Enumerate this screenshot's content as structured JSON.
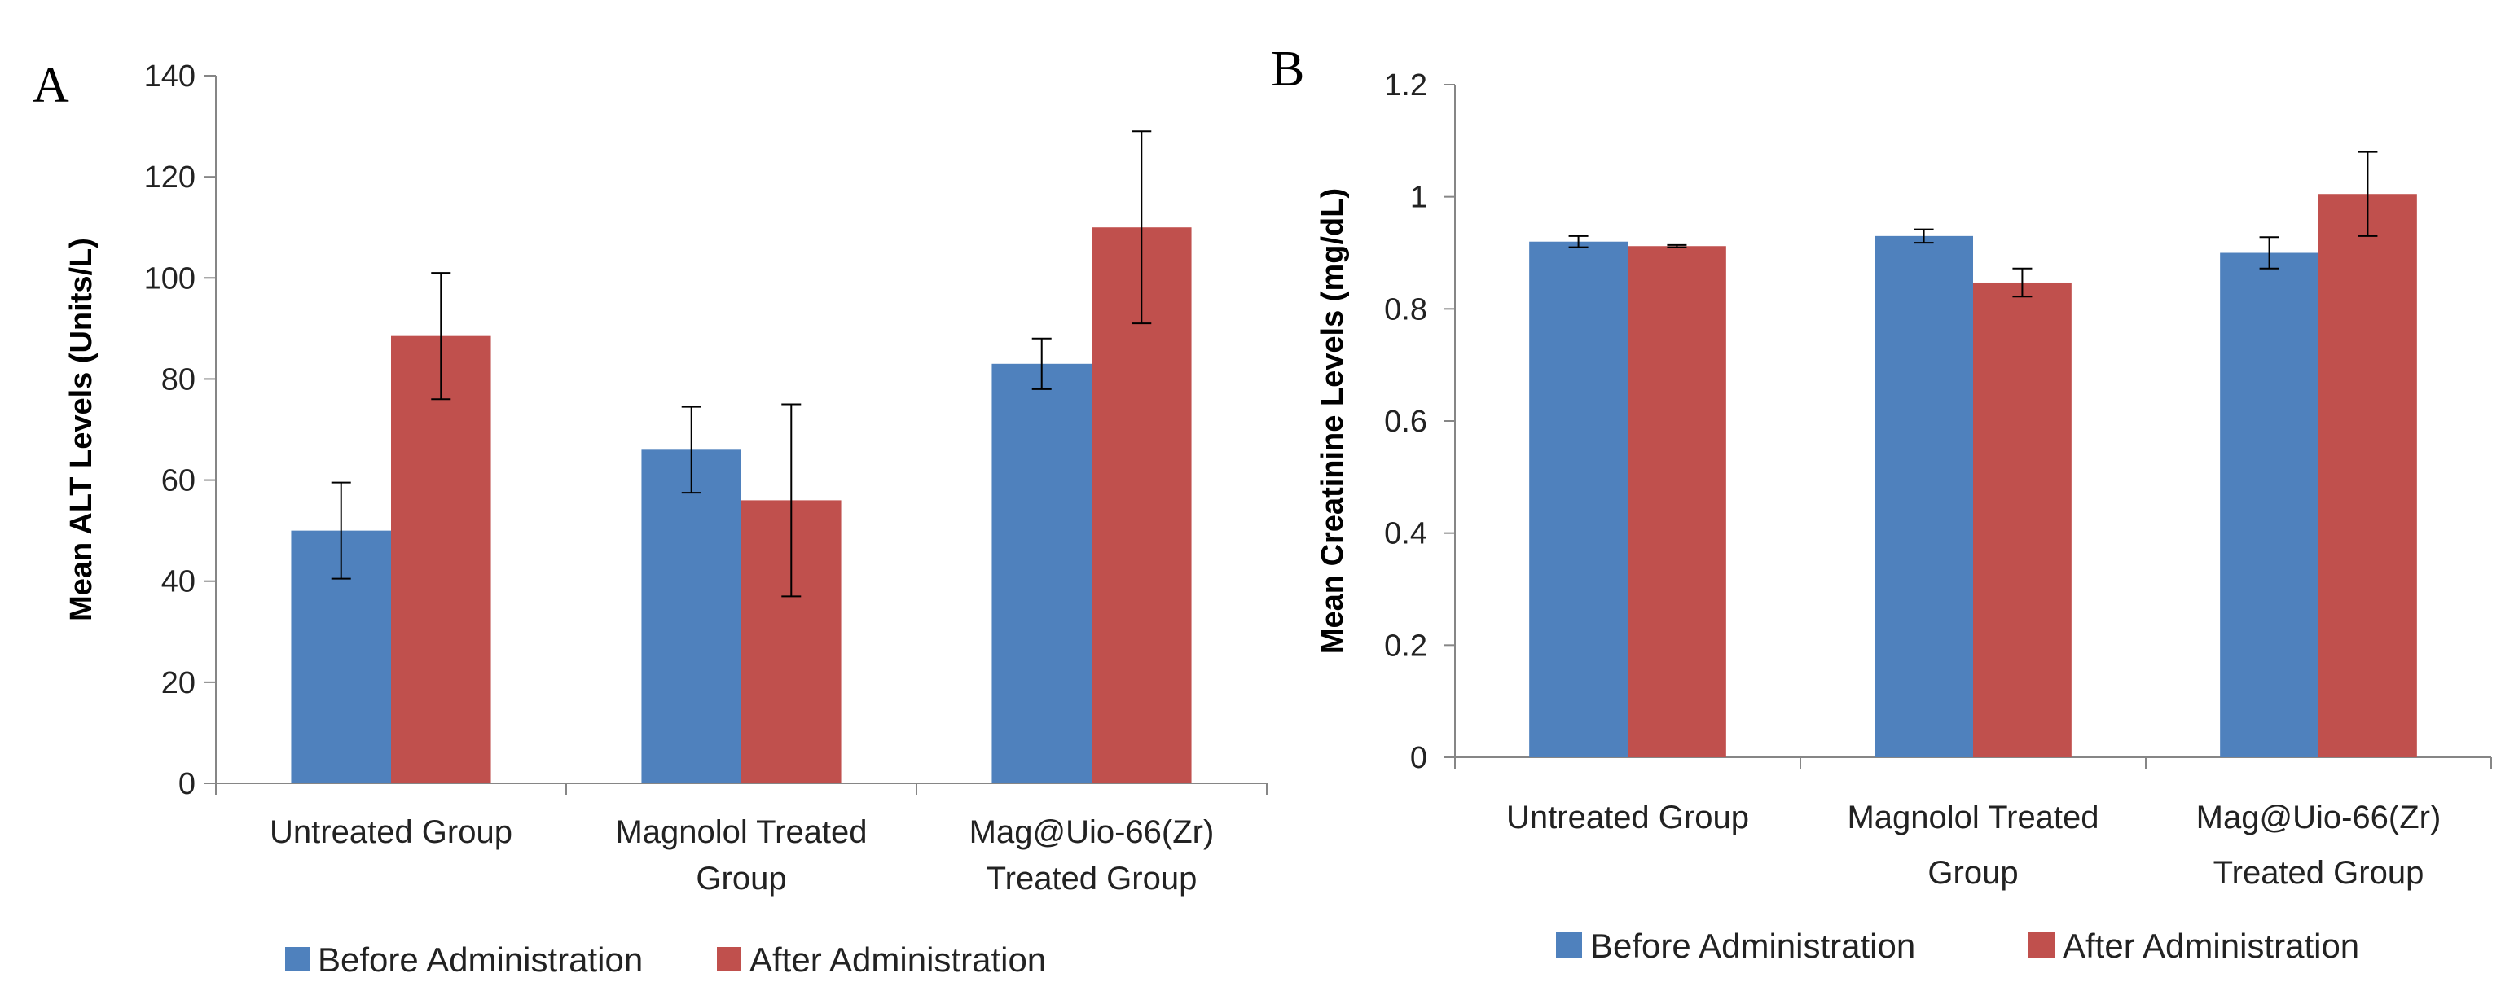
{
  "chart_data": [
    {
      "panel": "A",
      "type": "bar",
      "title": "",
      "xlabel": "",
      "ylabel": "Mean ALT Levels (Units/L)",
      "categories": [
        [
          "Untreated Group"
        ],
        [
          "Magnolol Treated",
          "Group"
        ],
        [
          "Mag@Uio-66(Zr)",
          "Treated Group"
        ]
      ],
      "ylim": [
        0,
        140
      ],
      "yticks": [
        0,
        20,
        40,
        60,
        80,
        100,
        120,
        140
      ],
      "grid": false,
      "legend_position": "bottom",
      "error_bars": true,
      "series": [
        {
          "name": "Before Administration",
          "color": "#4F81BD",
          "values": [
            50,
            66,
            83
          ],
          "errors": [
            9.5,
            8.5,
            5
          ]
        },
        {
          "name": "After Administration",
          "color": "#C0504D",
          "values": [
            88.5,
            56,
            110
          ],
          "errors": [
            12.5,
            19,
            19
          ]
        }
      ]
    },
    {
      "panel": "B",
      "type": "bar",
      "title": "",
      "xlabel": "",
      "ylabel": "Mean Creatinine Levels (mg/dL)",
      "categories": [
        [
          "Untreated Group"
        ],
        [
          "Magnolol Treated",
          "Group"
        ],
        [
          "Mag@Uio-66(Zr)",
          "Treated Group"
        ]
      ],
      "ylim": [
        0,
        1.2
      ],
      "yticks": [
        "0",
        "0.2",
        "0.4",
        "0.6",
        "0.8",
        "1",
        "1.2"
      ],
      "grid": false,
      "legend_position": "bottom",
      "error_bars": true,
      "series": [
        {
          "name": "Before Administration",
          "color": "#4F81BD",
          "values": [
            0.92,
            0.93,
            0.9
          ],
          "errors": [
            0.01,
            0.012,
            0.028
          ]
        },
        {
          "name": "After Administration",
          "color": "#C0504D",
          "values": [
            0.912,
            0.847,
            1.005
          ],
          "errors": [
            0.002,
            0.025,
            0.075
          ]
        }
      ]
    }
  ]
}
